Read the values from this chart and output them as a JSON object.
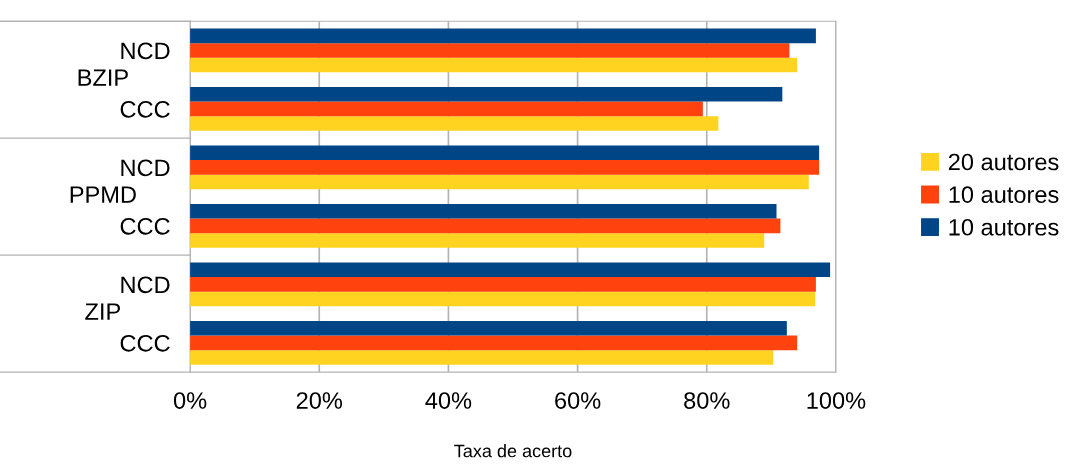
{
  "chart_data": {
    "type": "bar",
    "orientation": "horizontal",
    "xlabel": "Taxa de acerto",
    "categories": [
      "NCD",
      "CCC",
      "NCD",
      "CCC",
      "NCD",
      "CCC"
    ],
    "annotations": [
      "BZIP",
      "PPMD",
      "ZIP"
    ],
    "series": [
      {
        "name": "20 autores",
        "color": "#ffd320",
        "values": [
          94.0,
          81.8,
          95.8,
          88.9,
          96.8,
          90.3
        ]
      },
      {
        "name": "10 autores",
        "color": "#ff420e",
        "values": [
          92.8,
          79.4,
          97.4,
          91.4,
          96.9,
          94.0
        ]
      },
      {
        "name": "10 autores",
        "color": "#004586",
        "values": [
          96.9,
          91.7,
          97.4,
          90.8,
          99.1,
          92.4
        ]
      }
    ],
    "xlim": [
      0,
      100
    ],
    "xticks": [
      {
        "value": 0,
        "label": "0%"
      },
      {
        "value": 20,
        "label": "20%"
      },
      {
        "value": 40,
        "label": "40%"
      },
      {
        "value": 60,
        "label": "60%"
      },
      {
        "value": 80,
        "label": "80%"
      },
      {
        "value": 100,
        "label": "100%"
      }
    ],
    "grid": "x",
    "legend": "right"
  }
}
